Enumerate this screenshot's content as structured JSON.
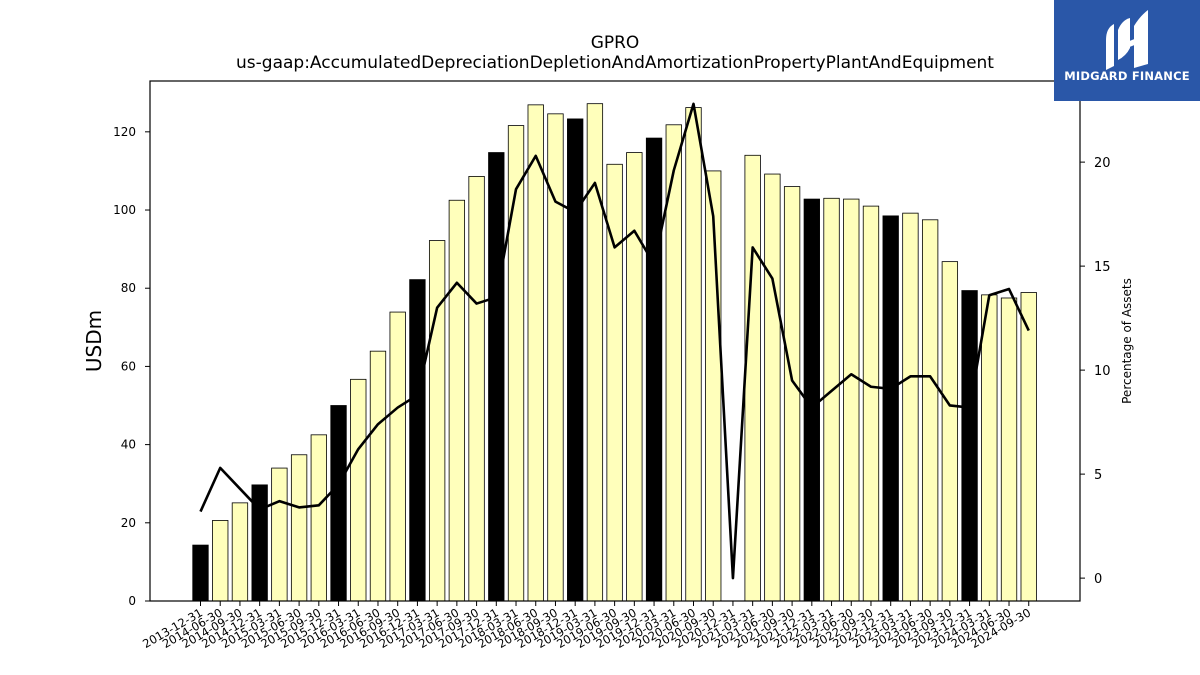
{
  "chart_data": {
    "type": "bar",
    "title": "GPRO",
    "subtitle": "us-gaap:AccumulatedDepreciationDepletionAndAmortizationPropertyPlantAndEquipment",
    "ylabel": "USDm",
    "y2label": "Percentage of Assets",
    "ylim": [
      0,
      133
    ],
    "y2lim": [
      -1.1,
      23.9
    ],
    "yticks": [
      0,
      20,
      40,
      60,
      80,
      100,
      120
    ],
    "y2ticks": [
      0,
      5,
      10,
      15,
      20
    ],
    "grid": false,
    "colors": {
      "annual_bar": "#000000",
      "quarter_bar": "#ffffbb",
      "bar_edge": "#000000",
      "line": "#000000"
    },
    "categories": [
      "2013-12-31",
      "2014-06-30",
      "2014-09-30",
      "2014-12-31",
      "2015-03-31",
      "2015-06-30",
      "2015-09-30",
      "2015-12-31",
      "2016-03-31",
      "2016-06-30",
      "2016-09-30",
      "2016-12-31",
      "2017-03-31",
      "2017-06-30",
      "2017-09-30",
      "2017-12-31",
      "2018-03-31",
      "2018-06-30",
      "2018-09-30",
      "2018-12-31",
      "2019-03-31",
      "2019-06-30",
      "2019-09-30",
      "2019-12-31",
      "2020-03-31",
      "2020-06-30",
      "2020-09-30",
      "2020-12-31",
      "2021-03-31",
      "2021-06-30",
      "2021-09-30",
      "2021-12-31",
      "2022-03-31",
      "2022-06-30",
      "2022-09-30",
      "2022-12-31",
      "2023-03-31",
      "2023-06-30",
      "2023-09-30",
      "2023-12-31",
      "2024-03-31",
      "2024-06-30",
      "2024-09-30"
    ],
    "series": [
      {
        "kind": "bar",
        "values": [
          14.3,
          20.6,
          25.1,
          29.7,
          34.0,
          37.4,
          42.5,
          50.0,
          56.7,
          63.9,
          73.9,
          82.2,
          92.2,
          102.5,
          108.6,
          114.7,
          121.6,
          126.9,
          124.6,
          123.3,
          127.2,
          111.7,
          114.7,
          118.4,
          121.8,
          126.2,
          110.0,
          0,
          114.0,
          109.2,
          106.0,
          102.8,
          103.0,
          102.8,
          101.0,
          98.5,
          99.2,
          97.5,
          86.8,
          79.4,
          78.3,
          77.5,
          78.9
        ],
        "annual": [
          true,
          false,
          false,
          true,
          false,
          false,
          false,
          true,
          false,
          false,
          false,
          true,
          false,
          false,
          false,
          true,
          false,
          false,
          false,
          true,
          false,
          false,
          false,
          true,
          false,
          false,
          false,
          true,
          false,
          false,
          false,
          true,
          false,
          false,
          false,
          true,
          false,
          false,
          false,
          true,
          false,
          false,
          false
        ]
      },
      {
        "kind": "line",
        "axis": "right",
        "values": [
          3.2,
          5.3,
          4.3,
          3.3,
          3.7,
          3.4,
          3.5,
          4.5,
          6.2,
          7.4,
          8.2,
          8.8,
          13.0,
          14.2,
          13.2,
          13.5,
          18.7,
          20.3,
          18.1,
          17.6,
          19.0,
          15.9,
          16.7,
          15.1,
          19.6,
          22.8,
          17.4,
          0.0,
          15.9,
          14.4,
          9.5,
          8.2,
          9.0,
          9.8,
          9.2,
          9.1,
          9.7,
          9.7,
          8.3,
          8.2,
          13.6,
          13.9,
          11.9
        ]
      }
    ]
  },
  "logo": {
    "text": "MIDGARD FINANCE",
    "bg_color": "#2a57a8"
  }
}
